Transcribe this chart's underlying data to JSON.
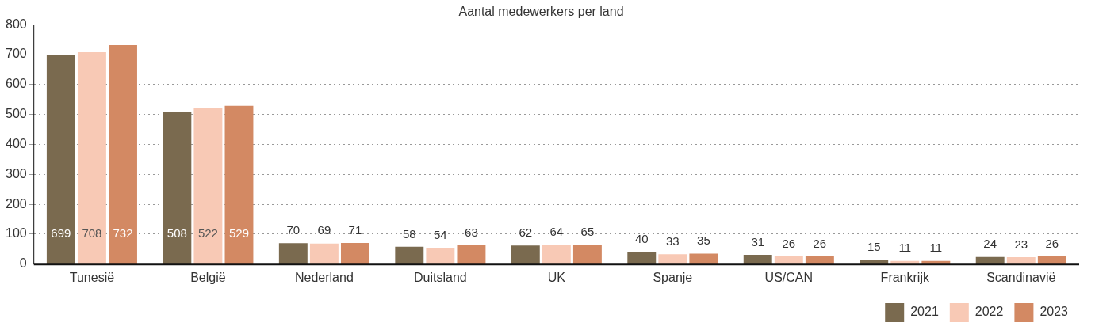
{
  "chart_data": {
    "type": "bar",
    "title": "Aantal medewerkers per land",
    "categories": [
      "Tunesië",
      "België",
      "Nederland",
      "Duitsland",
      "UK",
      "Spanje",
      "US/CAN",
      "Frankrijk",
      "Scandinavië"
    ],
    "series": [
      {
        "name": "2021",
        "color": "#7a6a4f",
        "values": [
          699,
          508,
          70,
          58,
          62,
          40,
          31,
          15,
          24
        ]
      },
      {
        "name": "2022",
        "color": "#f8c9b5",
        "values": [
          708,
          522,
          69,
          54,
          64,
          33,
          26,
          11,
          23
        ]
      },
      {
        "name": "2023",
        "color": "#d38963",
        "values": [
          732,
          529,
          71,
          63,
          65,
          35,
          26,
          11,
          26
        ]
      }
    ],
    "ylim": [
      0,
      800
    ],
    "yticks": [
      0,
      100,
      200,
      300,
      400,
      500,
      600,
      700,
      800
    ],
    "grid": "y",
    "legend": "bottom right",
    "data_labels": true
  }
}
